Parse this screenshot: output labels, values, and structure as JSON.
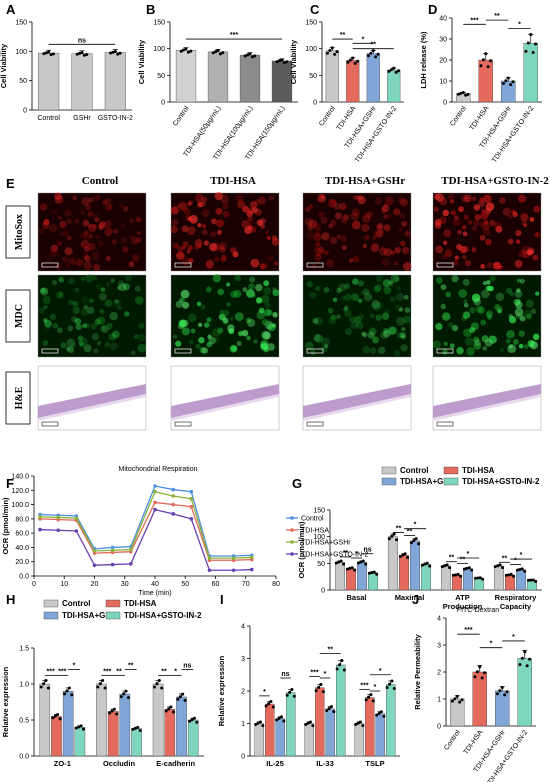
{
  "colors": {
    "control": "#c8c8c8",
    "tdi": "#e36a5d",
    "gshr": "#7fa6d6",
    "gsto": "#7fd6be",
    "g1": "#d2d2d2",
    "g2": "#b0b0b0",
    "g3": "#8c8c8c",
    "g4": "#5c5c5c"
  },
  "panels": {
    "A": {
      "letter": "A",
      "ylabel": "Cell Viability",
      "sig": [
        "ns"
      ]
    },
    "B": {
      "letter": "B",
      "ylabel": "Cell Viability",
      "sig": [
        "***"
      ]
    },
    "C": {
      "letter": "C",
      "ylabel": "Cell Viability",
      "sig": [
        "**",
        "*",
        "**"
      ]
    },
    "D": {
      "letter": "D",
      "ylabel": "LDH release (%)",
      "sig": [
        "***",
        "**",
        "*"
      ]
    },
    "E": {
      "letter": "E",
      "columns": [
        "Control",
        "TDI-HSA",
        "TDI-HSA+GSHr",
        "TDI-HSA+GSTO-IN-2"
      ],
      "rows": [
        "MitoSox",
        "MDC",
        "H&E"
      ]
    },
    "F": {
      "letter": "F",
      "title": "Mitochondrial Respiration",
      "ylabel": "OCR (pmol/min)",
      "xlabel": "Time (min)"
    },
    "G": {
      "letter": "G",
      "ylabel": "OCR (pmol/min)",
      "sig": [
        "**",
        "*",
        "ns",
        "**",
        "**",
        "*",
        "**",
        "**",
        "*",
        "**",
        "*",
        "*"
      ]
    },
    "H": {
      "letter": "H",
      "ylabel": "Relative expression",
      "sig": [
        "***",
        "***",
        "*",
        "***",
        "**",
        "**",
        "**",
        "*",
        "ns"
      ]
    },
    "I": {
      "letter": "I",
      "ylabel": "Relative expression",
      "sig": [
        "*",
        "ns",
        "***",
        "*",
        "**",
        "***",
        "*",
        "*"
      ]
    },
    "J": {
      "letter": "J",
      "title": "FITC-Dextran",
      "ylabel": "Relative Permeability",
      "sig": [
        "***",
        "*",
        "*"
      ]
    }
  },
  "legend4": [
    "Control",
    "TDI-HSA",
    "TDI-HSA+GSHr",
    "TDI-HSA+GSTO-IN-2"
  ],
  "chart_data": [
    {
      "panel": "A",
      "type": "bar",
      "categories": [
        "Control",
        "GSHr",
        "GSTO-IN-2"
      ],
      "values": [
        97,
        96,
        98
      ],
      "ylim": [
        0,
        150
      ],
      "yticks": [
        0,
        50,
        100,
        150
      ]
    },
    {
      "panel": "B",
      "type": "bar",
      "categories": [
        "Control",
        "TDI-HSA(50μg/mL)",
        "TDI-HSA(100μg/mL)",
        "TDI-HSA(150μg/mL)"
      ],
      "values": [
        97,
        94,
        88,
        77
      ],
      "ylim": [
        0,
        150
      ],
      "yticks": [
        0,
        50,
        100,
        150
      ]
    },
    {
      "panel": "C",
      "type": "bar",
      "categories": [
        "Control",
        "TDI-HSA",
        "TDI-HSA+GSHr",
        "TDI-HSA+GSTO-IN-2"
      ],
      "values": [
        96,
        78,
        91,
        60
      ],
      "ylim": [
        0,
        150
      ],
      "yticks": [
        0,
        50,
        100,
        150
      ]
    },
    {
      "panel": "D",
      "type": "bar",
      "categories": [
        "Control",
        "TDI-HSA",
        "TDI-HSA+GSHr",
        "TDI-HSA+GSTO-IN-2"
      ],
      "values": [
        4,
        20,
        10,
        28
      ],
      "ylim": [
        0,
        40
      ],
      "yticks": [
        0,
        10,
        20,
        30,
        40
      ]
    },
    {
      "panel": "F",
      "type": "line",
      "x": [
        2,
        8,
        14,
        20,
        26,
        32,
        40,
        46,
        52,
        58,
        66,
        72
      ],
      "yticks": [
        0,
        20,
        40,
        60,
        80,
        100,
        120,
        140
      ],
      "xticks": [
        0,
        10,
        20,
        30,
        40,
        50,
        60,
        70,
        80
      ],
      "ylim": [
        0,
        140
      ],
      "xlim": [
        0,
        80
      ],
      "series": [
        {
          "name": "Control",
          "values": [
            86,
            85,
            84,
            38,
            40,
            41,
            126,
            121,
            118,
            28,
            28,
            29
          ]
        },
        {
          "name": "TDI-HSA",
          "values": [
            80,
            79,
            78,
            32,
            33,
            34,
            103,
            100,
            97,
            22,
            22,
            23
          ]
        },
        {
          "name": "TDI-HSA+GSHr",
          "values": [
            83,
            82,
            81,
            35,
            36,
            37,
            118,
            112,
            108,
            25,
            25,
            26
          ]
        },
        {
          "name": "TDI-HSA+GSTO-IN-2",
          "values": [
            65,
            64,
            63,
            15,
            16,
            17,
            93,
            87,
            80,
            8,
            8,
            9
          ]
        }
      ]
    },
    {
      "panel": "G",
      "type": "bar",
      "categories": [
        "Basal",
        "Maximal",
        "ATP Production",
        "Respiratory Capacity"
      ],
      "ylim": [
        0,
        150
      ],
      "yticks": [
        0,
        50,
        100,
        150
      ],
      "series": [
        {
          "name": "Control",
          "values": [
            52,
            100,
            45,
            45
          ]
        },
        {
          "name": "TDI-HSA",
          "values": [
            40,
            65,
            28,
            28
          ]
        },
        {
          "name": "TDI-HSA+GSHr",
          "values": [
            52,
            92,
            40,
            38
          ]
        },
        {
          "name": "TDI-HSA+GSTO-IN-2",
          "values": [
            32,
            48,
            22,
            18
          ]
        }
      ]
    },
    {
      "panel": "H",
      "type": "bar",
      "categories": [
        "ZO-1",
        "Occludin",
        "E-cadherin"
      ],
      "ylim": [
        0,
        1.5
      ],
      "yticks": [
        0.0,
        0.5,
        1.0,
        1.5
      ],
      "series": [
        {
          "name": "Control",
          "values": [
            1.0,
            1.0,
            1.0
          ]
        },
        {
          "name": "TDI-HSA",
          "values": [
            0.55,
            0.62,
            0.65
          ]
        },
        {
          "name": "TDI-HSA+GSHr",
          "values": [
            0.9,
            0.86,
            0.82
          ]
        },
        {
          "name": "TDI-HSA+GSTO-IN-2",
          "values": [
            0.4,
            0.38,
            0.5
          ]
        }
      ]
    },
    {
      "panel": "I",
      "type": "bar",
      "categories": [
        "IL-25",
        "IL-33",
        "TSLP"
      ],
      "ylim": [
        0,
        4
      ],
      "yticks": [
        0,
        1,
        2,
        3,
        4
      ],
      "series": [
        {
          "name": "Control",
          "values": [
            1.0,
            1.0,
            1.0
          ]
        },
        {
          "name": "TDI-HSA",
          "values": [
            1.6,
            2.1,
            1.8
          ]
        },
        {
          "name": "TDI-HSA+GSHr",
          "values": [
            1.15,
            1.45,
            1.3
          ]
        },
        {
          "name": "TDI-HSA+GSTO-IN-2",
          "values": [
            1.95,
            2.8,
            2.2
          ]
        }
      ]
    },
    {
      "panel": "J",
      "type": "bar",
      "categories": [
        "Control",
        "TDI-HSA",
        "TDI-HSA+GSHr",
        "TDI-HSA+GSTO-IN-2"
      ],
      "values": [
        1.0,
        2.0,
        1.3,
        2.5
      ],
      "ylim": [
        0,
        4
      ],
      "yticks": [
        0,
        1,
        2,
        3,
        4
      ]
    }
  ]
}
